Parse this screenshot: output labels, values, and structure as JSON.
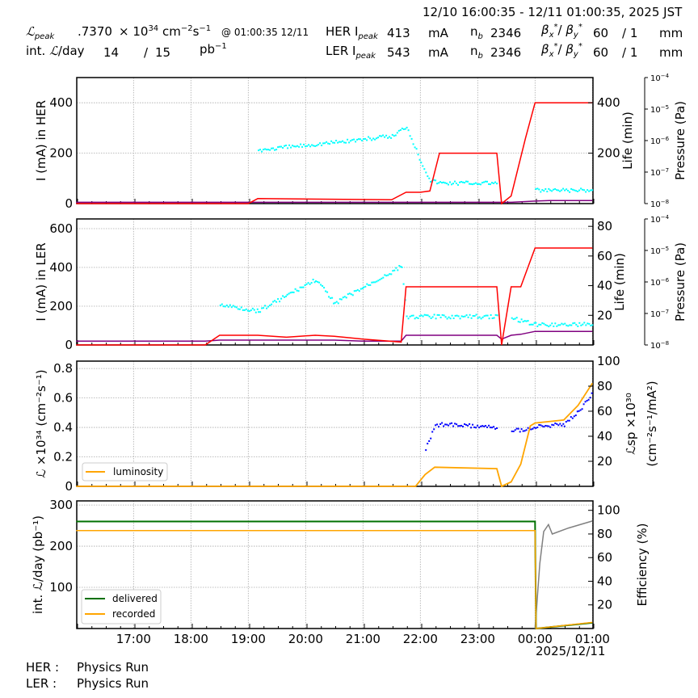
{
  "header": {
    "time_range": "12/10 16:00:35 - 12/11 01:00:35, 2025 JST",
    "lpeak_label": "peak",
    "lpeak_value": ".7370",
    "lpeak_unit_prefix": "× 10",
    "lpeak_exp": "34",
    "lpeak_unit": "cm",
    "lpeak_at": "@ 01:00:35 12/11",
    "intl_label": "int. ",
    "intl_label_suffix": "/day",
    "intl_delivered": "14",
    "intl_sep": "/",
    "intl_recorded": "15",
    "intl_unit": "pb",
    "her": {
      "label": "HER I",
      "sub": "peak",
      "current": "413",
      "unit": "mA",
      "nb_label": "n",
      "nb_sub": "b",
      "nb": "2346",
      "betax": "60",
      "betay": "/ 1",
      "beta_unit": "mm"
    },
    "ler": {
      "label": "LER I",
      "sub": "peak",
      "current": "543",
      "unit": "mA",
      "nb_label": "n",
      "nb_sub": "b",
      "nb": "2346",
      "betax": "60",
      "betay": "/ 1",
      "beta_unit": "mm"
    }
  },
  "footer": {
    "her_label": "HER :",
    "her_status": "Physics Run",
    "ler_label": "LER :",
    "ler_status": "Physics Run",
    "date": "2025/12/11"
  },
  "colors": {
    "current": "#ff0000",
    "life": "#00ffff",
    "pressure": "#800080",
    "luminosity": "#ffa500",
    "specific_lumi": "#0000ff",
    "delivered": "#007000",
    "recorded": "#ffa500",
    "efficiency": "#808080"
  },
  "chart_data": [
    {
      "type": "line",
      "title": "HER",
      "xlabel": "",
      "ylabel": "I (mA) in HER",
      "ylabel_right": "Life (min)",
      "ylabel_right2": "Pressure (Pa)",
      "ylim": [
        0,
        500
      ],
      "yticks": [
        0,
        200,
        400
      ],
      "yticks_right": [
        200,
        400
      ],
      "yticks_right2": [
        "10^-8",
        "10^-7",
        "10^-6",
        "10^-5",
        "10^-4"
      ],
      "x": [
        "16:00",
        "19:00",
        "19:10",
        "21:30",
        "21:45",
        "22:00",
        "22:10",
        "22:20",
        "23:20",
        "23:25",
        "23:35",
        "23:50",
        "00:00",
        "00:15",
        "01:00"
      ],
      "series": [
        {
          "name": "current",
          "values": [
            0,
            0,
            20,
            15,
            45,
            45,
            50,
            200,
            200,
            0,
            30,
            260,
            400,
            400,
            400
          ]
        },
        {
          "name": "life",
          "values": [
            null,
            null,
            215,
            270,
            310,
            170,
            95,
            85,
            85,
            null,
            null,
            null,
            55,
            55,
            55
          ]
        },
        {
          "name": "pressure",
          "values": [
            5,
            5,
            5,
            5,
            5,
            5,
            5,
            5,
            5,
            5,
            5,
            8,
            10,
            12,
            12
          ]
        }
      ],
      "grid": true
    },
    {
      "type": "line",
      "title": "LER",
      "ylabel": "I (mA) in LER",
      "ylabel_right": "Life (min)",
      "ylabel_right2": "Pressure (Pa)",
      "ylim": [
        0,
        650
      ],
      "yticks": [
        0,
        200,
        400,
        600
      ],
      "yticks_right": [
        20,
        40,
        60,
        80
      ],
      "yticks_right2": [
        "10^-8",
        "10^-7",
        "10^-6",
        "10^-5",
        "10^-4"
      ],
      "x": [
        "16:00",
        "18:15",
        "18:30",
        "19:10",
        "19:40",
        "20:10",
        "20:30",
        "21:00",
        "21:40",
        "21:45",
        "23:20",
        "23:25",
        "23:35",
        "23:45",
        "00:00",
        "01:00"
      ],
      "series": [
        {
          "name": "current",
          "values": [
            0,
            0,
            50,
            50,
            40,
            50,
            45,
            30,
            15,
            300,
            300,
            0,
            300,
            300,
            500,
            500
          ]
        },
        {
          "name": "life",
          "values": [
            null,
            null,
            210,
            180,
            260,
            340,
            220,
            300,
            410,
            150,
            150,
            null,
            140,
            130,
            110,
            110
          ]
        },
        {
          "name": "pressure",
          "values": [
            20,
            20,
            25,
            25,
            25,
            25,
            25,
            20,
            20,
            50,
            50,
            30,
            50,
            55,
            70,
            70
          ]
        }
      ],
      "grid": true
    },
    {
      "type": "line",
      "title": "Luminosity",
      "ylabel": "L ×10^34 (cm^-2 s^-1)",
      "ylabel_right": "L_sp ×10^30 (cm^-2 s^-1 / mA^2)",
      "ylim": [
        0,
        0.85
      ],
      "yticks": [
        0.0,
        0.2,
        0.4,
        0.6,
        0.8
      ],
      "yticks_right": [
        20,
        40,
        60,
        80,
        100
      ],
      "legend": [
        "luminosity"
      ],
      "legend_position": "lower left",
      "x": [
        "16:00",
        "21:55",
        "22:05",
        "22:15",
        "23:20",
        "23:25",
        "23:35",
        "23:45",
        "23:55",
        "00:00",
        "00:30",
        "00:45",
        "01:00"
      ],
      "series": [
        {
          "name": "luminosity",
          "values": [
            0,
            0,
            0.08,
            0.13,
            0.12,
            0,
            0.03,
            0.15,
            0.41,
            0.43,
            0.45,
            0.55,
            0.7
          ]
        },
        {
          "name": "specific_luminosity",
          "values": [
            null,
            null,
            30,
            50,
            48,
            null,
            45,
            46,
            47,
            48,
            50,
            60,
            75
          ]
        }
      ],
      "grid": true
    },
    {
      "type": "line",
      "title": "Integrated luminosity",
      "ylabel": "int. L/day (pb^-1)",
      "ylabel_right": "Efficiency (%)",
      "ylim": [
        0,
        310
      ],
      "yticks": [
        100,
        200,
        300
      ],
      "yticks_right": [
        20,
        40,
        60,
        80,
        100
      ],
      "legend": [
        "delivered",
        "recorded"
      ],
      "legend_position": "lower left",
      "xticks": [
        "17:00",
        "18:00",
        "19:00",
        "20:00",
        "21:00",
        "22:00",
        "23:00",
        "00:00",
        "01:00"
      ],
      "x": [
        "16:00",
        "00:00",
        "00:01",
        "01:00"
      ],
      "series": [
        {
          "name": "delivered",
          "values": [
            260,
            260,
            0,
            14
          ]
        },
        {
          "name": "recorded",
          "values": [
            238,
            238,
            0,
            15
          ]
        },
        {
          "name": "efficiency",
          "values": [
            null,
            null,
            0,
            90
          ]
        }
      ],
      "grid": true
    }
  ]
}
